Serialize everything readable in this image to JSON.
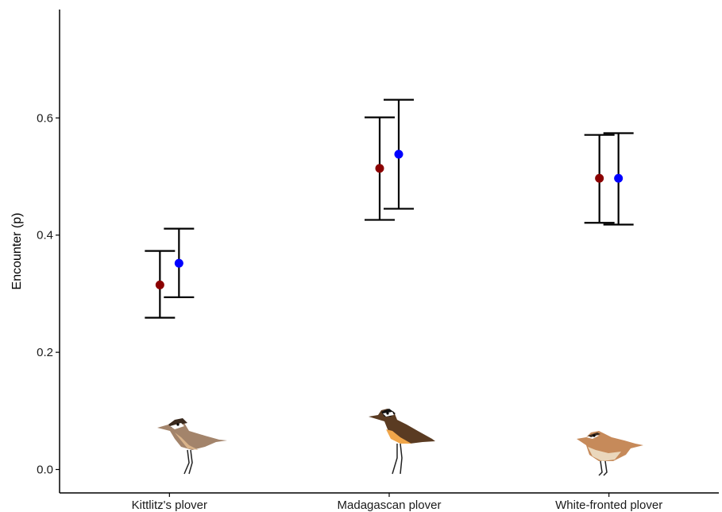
{
  "chart_data": {
    "type": "scatter",
    "title": "",
    "xlabel": "",
    "ylabel": "Encounter (p)",
    "ylim": [
      -0.04,
      0.785
    ],
    "yticks": [
      0.0,
      0.2,
      0.4,
      0.6
    ],
    "ytick_labels": [
      "0.0",
      "0.2",
      "0.4",
      "0.6"
    ],
    "categories": [
      "Kittlitz's plover",
      "Madagascan plover",
      "White-fronted plover"
    ],
    "grid": false,
    "legend": "none",
    "series": [
      {
        "color": "#8b0000",
        "values": [
          0.315,
          0.514,
          0.497
        ],
        "lower": [
          0.259,
          0.426,
          0.421
        ],
        "upper": [
          0.373,
          0.601,
          0.571
        ]
      },
      {
        "color": "#0000ff",
        "values": [
          0.352,
          0.538,
          0.497
        ],
        "lower": [
          0.294,
          0.445,
          0.418
        ],
        "upper": [
          0.411,
          0.631,
          0.574
        ]
      }
    ],
    "bird_icons": [
      "kittlitz-plover-icon",
      "madagascan-plover-icon",
      "white-fronted-plover-icon"
    ]
  }
}
